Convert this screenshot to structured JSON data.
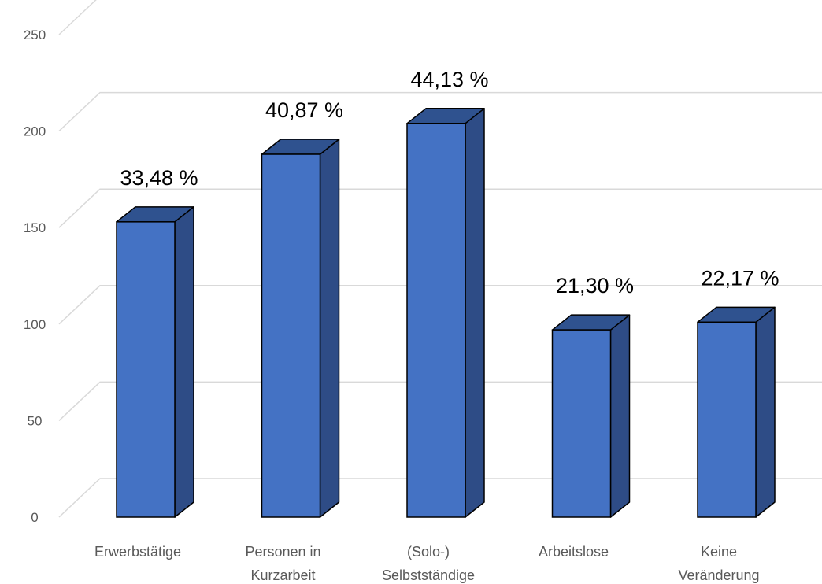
{
  "chart_data": {
    "type": "bar",
    "style": "3d-column",
    "categories": [
      [
        "Erwerbstätige"
      ],
      [
        "Personen in",
        "Kurzarbeit"
      ],
      [
        "(Solo-)",
        "Selbstständige"
      ],
      [
        "Arbeitslose"
      ],
      [
        "Keine",
        "Veränderung"
      ]
    ],
    "values": [
      153,
      188,
      204,
      97,
      101
    ],
    "data_labels": [
      "33,48 %",
      "40,87 %",
      "44,13 %",
      "21,30 %",
      "22,17 %"
    ],
    "yticks": [
      "0",
      "50",
      "100",
      "150",
      "200",
      "250"
    ],
    "ylim": [
      0,
      250
    ],
    "grid": true,
    "legend": "none",
    "colors": {
      "front": "#4472C4",
      "top": "#2F528F",
      "side": "#2E4C86",
      "outline": "#000000",
      "grid": "#D9D9D9"
    }
  }
}
